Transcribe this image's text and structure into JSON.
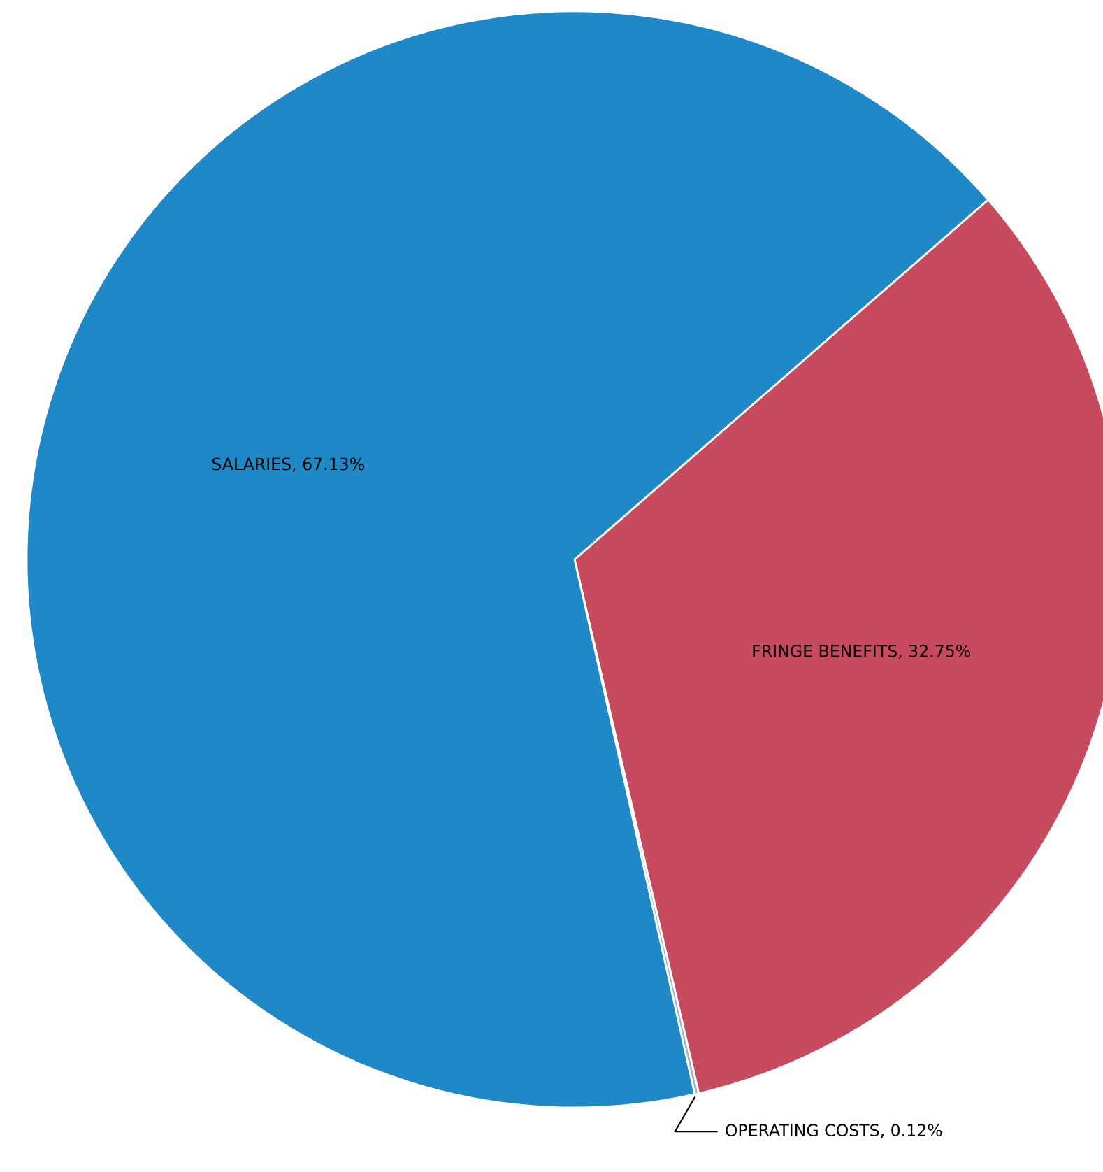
{
  "chart_data": {
    "type": "pie",
    "categories": [
      "FRINGE BENEFITS",
      "OPERATING COSTS",
      "SALARIES"
    ],
    "values": [
      32.75,
      0.12,
      67.13
    ],
    "colors": [
      "#c84a5f",
      "#9fb6c8",
      "#1f88c6"
    ],
    "value_labels": [
      "32.75%",
      "0.12%",
      "67.13%"
    ],
    "legend": false
  }
}
